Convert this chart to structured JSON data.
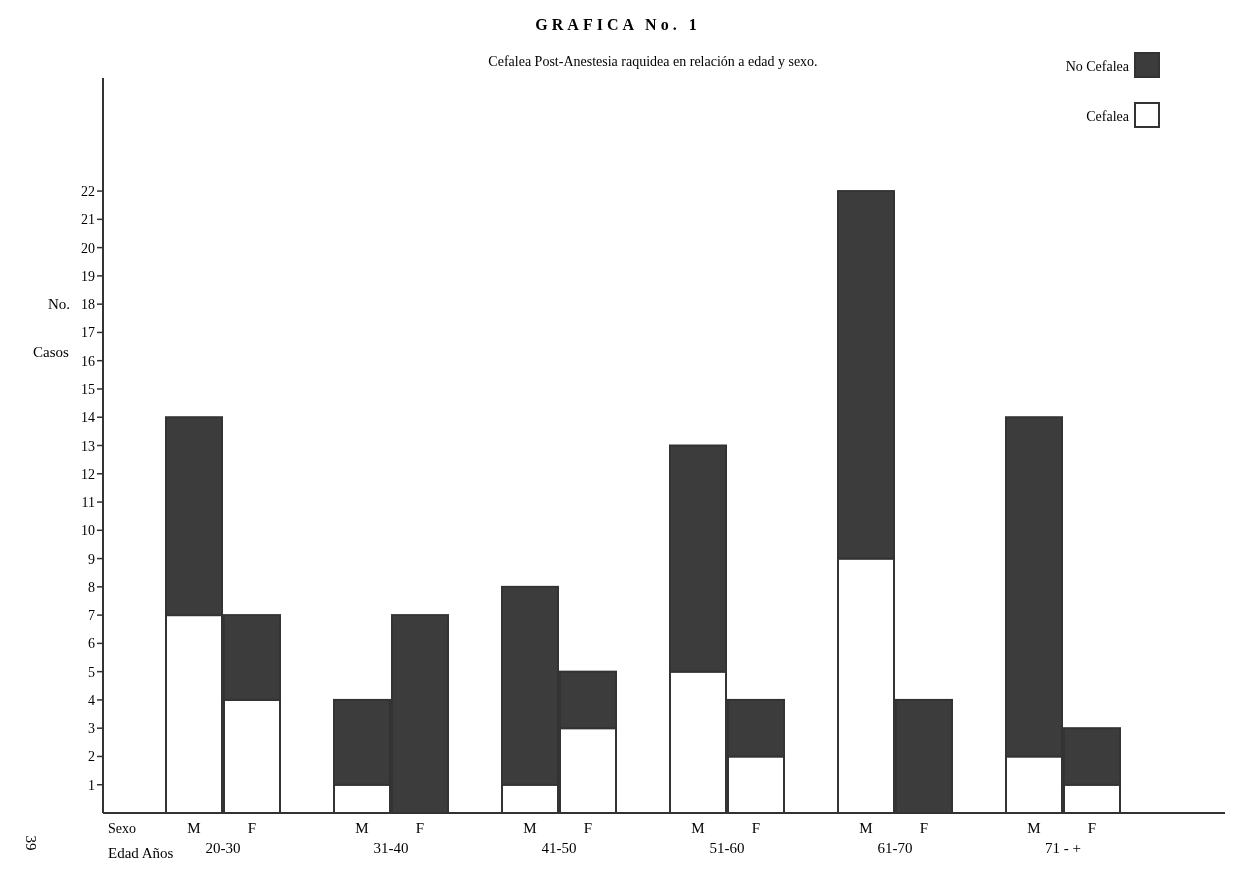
{
  "chart_data": {
    "type": "bar",
    "title": "GRAFICA No. 1",
    "subtitle": "Cefalea Post-Anestesia raquidea en relación a edad y sexo.",
    "ylabel": "No. Casos",
    "categories": [
      "M",
      "F",
      "M",
      "F",
      "M",
      "F",
      "M",
      "F",
      "M",
      "F",
      "M",
      "F"
    ],
    "stacked": true,
    "series": [
      {
        "name": "Cefalea",
        "color": "#ffffff",
        "values": [
          7,
          4,
          1,
          0,
          1,
          3,
          5,
          2,
          9,
          0,
          2,
          1
        ]
      },
      {
        "name": "No Cefalea",
        "color": "#3c3c3c",
        "values": [
          7,
          3,
          3,
          7,
          7,
          2,
          8,
          2,
          13,
          4,
          12,
          2
        ]
      }
    ],
    "ylim": [
      0,
      26
    ],
    "yticks": [
      1,
      2,
      3,
      4,
      5,
      6,
      7,
      8,
      9,
      10,
      11,
      12,
      13,
      14,
      15,
      16,
      17,
      18,
      19,
      20,
      21,
      22
    ],
    "grid": false,
    "legend": "top right",
    "annotations": [
      "Sexo",
      "Edad Años",
      "20-30",
      "31-40",
      "41-50",
      "51-60",
      "61-70",
      "71 - +",
      "39"
    ]
  }
}
